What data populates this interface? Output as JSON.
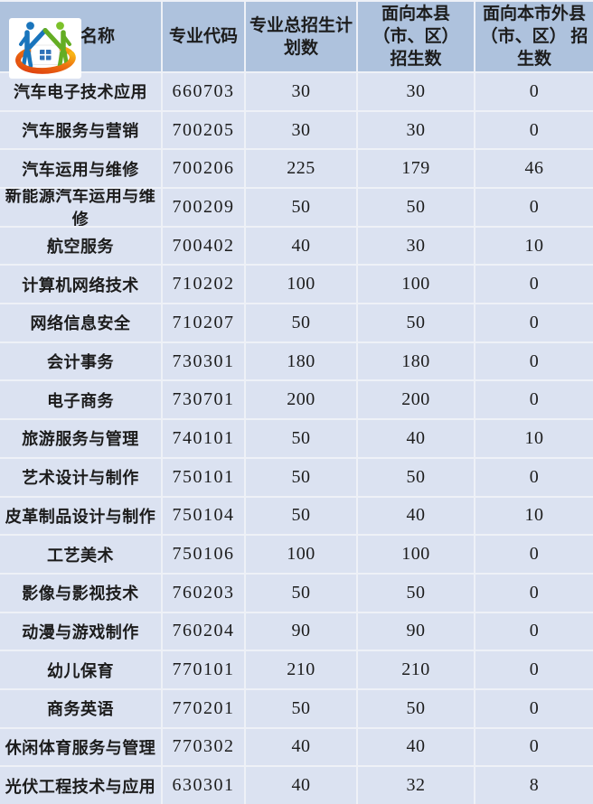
{
  "colors": {
    "header_bg": "#aec2dd",
    "row_bg": "#dbe2f1",
    "grid_line": "#eef1f7",
    "text": "#1c1c1c",
    "logo_blue": "#1a75bc",
    "logo_green": "#64ad24",
    "logo_red": "#dd3b10",
    "logo_orange": "#f6a314",
    "logo_window_blue": "#2f71b8"
  },
  "table": {
    "headers": [
      "专业名称",
      "专业代码",
      "专业总招生计\n划数",
      "面向本县\n（市、区）\n招生数",
      "面向本市外县\n（市、区） 招\n生数"
    ],
    "rows": [
      {
        "name": "汽车电子技术应用",
        "code": "660703",
        "total": "30",
        "local": "30",
        "outside": "0"
      },
      {
        "name": "汽车服务与营销",
        "code": "700205",
        "total": "30",
        "local": "30",
        "outside": "0"
      },
      {
        "name": "汽车运用与维修",
        "code": "700206",
        "total": "225",
        "local": "179",
        "outside": "46"
      },
      {
        "name": "新能源汽车运用与维修",
        "code": "700209",
        "total": "50",
        "local": "50",
        "outside": "0"
      },
      {
        "name": "航空服务",
        "code": "700402",
        "total": "40",
        "local": "30",
        "outside": "10"
      },
      {
        "name": "计算机网络技术",
        "code": "710202",
        "total": "100",
        "local": "100",
        "outside": "0"
      },
      {
        "name": "网络信息安全",
        "code": "710207",
        "total": "50",
        "local": "50",
        "outside": "0"
      },
      {
        "name": "会计事务",
        "code": "730301",
        "total": "180",
        "local": "180",
        "outside": "0"
      },
      {
        "name": "电子商务",
        "code": "730701",
        "total": "200",
        "local": "200",
        "outside": "0"
      },
      {
        "name": "旅游服务与管理",
        "code": "740101",
        "total": "50",
        "local": "40",
        "outside": "10"
      },
      {
        "name": "艺术设计与制作",
        "code": "750101",
        "total": "50",
        "local": "50",
        "outside": "0"
      },
      {
        "name": "皮革制品设计与制作",
        "code": "750104",
        "total": "50",
        "local": "40",
        "outside": "10"
      },
      {
        "name": "工艺美术",
        "code": "750106",
        "total": "100",
        "local": "100",
        "outside": "0"
      },
      {
        "name": "影像与影视技术",
        "code": "760203",
        "total": "50",
        "local": "50",
        "outside": "0"
      },
      {
        "name": "动漫与游戏制作",
        "code": "760204",
        "total": "90",
        "local": "90",
        "outside": "0"
      },
      {
        "name": "幼儿保育",
        "code": "770101",
        "total": "210",
        "local": "210",
        "outside": "0"
      },
      {
        "name": "商务英语",
        "code": "770201",
        "total": "50",
        "local": "50",
        "outside": "0"
      },
      {
        "name": "休闲体育服务与管理",
        "code": "770302",
        "total": "40",
        "local": "40",
        "outside": "0"
      },
      {
        "name": "光伏工程技术与应用",
        "code": "630301",
        "total": "40",
        "local": "32",
        "outside": "8"
      }
    ]
  }
}
